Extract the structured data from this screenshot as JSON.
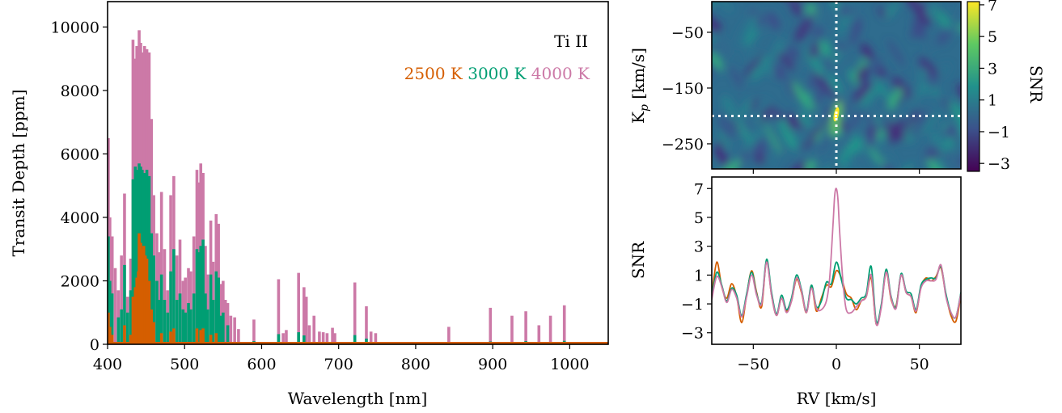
{
  "chart_data": [
    {
      "type": "bar",
      "panel": "spectrum",
      "xlabel": "Wavelength [nm]",
      "ylabel": "Transit Depth [ppm]",
      "xlim": [
        400,
        1050
      ],
      "ylim": [
        0,
        10800
      ],
      "xticks": [
        400,
        500,
        600,
        700,
        800,
        900,
        1000
      ],
      "yticks": [
        0,
        2000,
        4000,
        6000,
        8000,
        10000
      ],
      "annotation": "Ti II",
      "legend_placement": "top-right",
      "series": [
        {
          "name": "4000 K",
          "color": "#cc79a7",
          "lines": [
            [
              401,
              6500
            ],
            [
              403,
              4000
            ],
            [
              406,
              3400
            ],
            [
              410,
              2400
            ],
            [
              414,
              1700
            ],
            [
              418,
              2800
            ],
            [
              422,
              4750
            ],
            [
              426,
              1500
            ],
            [
              430,
              2700
            ],
            [
              433,
              9600
            ],
            [
              436,
              9000
            ],
            [
              438,
              9400
            ],
            [
              441,
              9900
            ],
            [
              443,
              9500
            ],
            [
              445,
              9200
            ],
            [
              448,
              9400
            ],
            [
              451,
              9300
            ],
            [
              454,
              9200
            ],
            [
              457,
              7100
            ],
            [
              460,
              4700
            ],
            [
              464,
              3500
            ],
            [
              467,
              2900
            ],
            [
              470,
              4800
            ],
            [
              474,
              3000
            ],
            [
              478,
              1700
            ],
            [
              482,
              4700
            ],
            [
              486,
              5300
            ],
            [
              490,
              2800
            ],
            [
              494,
              3300
            ],
            [
              498,
              2000
            ],
            [
              501,
              2100
            ],
            [
              505,
              2400
            ],
            [
              508,
              2300
            ],
            [
              512,
              3400
            ],
            [
              516,
              5500
            ],
            [
              519,
              5100
            ],
            [
              521,
              5700
            ],
            [
              524,
              5400
            ],
            [
              527,
              3100
            ],
            [
              530,
              2200
            ],
            [
              534,
              3900
            ],
            [
              537,
              2600
            ],
            [
              541,
              4100
            ],
            [
              544,
              3800
            ],
            [
              547,
              1900
            ],
            [
              550,
              2000
            ],
            [
              553,
              1400
            ],
            [
              556,
              1300
            ],
            [
              560,
              900
            ],
            [
              565,
              850
            ],
            [
              570,
              480
            ],
            [
              590,
              780
            ],
            [
              622,
              2050
            ],
            [
              628,
              350
            ],
            [
              632,
              450
            ],
            [
              648,
              2250
            ],
            [
              655,
              1800
            ],
            [
              658,
              1500
            ],
            [
              662,
              600
            ],
            [
              668,
              900
            ],
            [
              675,
              400
            ],
            [
              680,
              380
            ],
            [
              685,
              350
            ],
            [
              692,
              520
            ],
            [
              695,
              350
            ],
            [
              721,
              1950
            ],
            [
              736,
              1200
            ],
            [
              742,
              400
            ],
            [
              748,
              350
            ],
            [
              843,
              550
            ],
            [
              897,
              1150
            ],
            [
              925,
              900
            ],
            [
              943,
              1040
            ],
            [
              960,
              600
            ],
            [
              975,
              900
            ],
            [
              993,
              1230
            ]
          ]
        },
        {
          "name": "3000 K",
          "color": "#009e73",
          "lines": [
            [
              401,
              3400
            ],
            [
              403,
              2000
            ],
            [
              406,
              1600
            ],
            [
              414,
              850
            ],
            [
              418,
              1100
            ],
            [
              422,
              2500
            ],
            [
              426,
              1000
            ],
            [
              430,
              1700
            ],
            [
              433,
              5200
            ],
            [
              436,
              5600
            ],
            [
              438,
              5500
            ],
            [
              441,
              5700
            ],
            [
              443,
              5600
            ],
            [
              445,
              5500
            ],
            [
              448,
              5400
            ],
            [
              451,
              5500
            ],
            [
              454,
              5300
            ],
            [
              457,
              3500
            ],
            [
              460,
              2800
            ],
            [
              464,
              2000
            ],
            [
              467,
              1400
            ],
            [
              470,
              2200
            ],
            [
              474,
              1400
            ],
            [
              478,
              1000
            ],
            [
              482,
              2300
            ],
            [
              486,
              3000
            ],
            [
              490,
              1400
            ],
            [
              494,
              1600
            ],
            [
              498,
              1100
            ],
            [
              501,
              1000
            ],
            [
              505,
              1300
            ],
            [
              508,
              1100
            ],
            [
              512,
              1600
            ],
            [
              516,
              3000
            ],
            [
              519,
              2900
            ],
            [
              521,
              3100
            ],
            [
              524,
              3300
            ],
            [
              527,
              1600
            ],
            [
              530,
              1100
            ],
            [
              534,
              2200
            ],
            [
              537,
              1400
            ],
            [
              541,
              2300
            ],
            [
              544,
              2100
            ],
            [
              547,
              900
            ],
            [
              550,
              1000
            ],
            [
              556,
              600
            ],
            [
              590,
              100
            ],
            [
              622,
              320
            ],
            [
              648,
              380
            ],
            [
              655,
              280
            ],
            [
              721,
              290
            ],
            [
              736,
              180
            ],
            [
              897,
              90
            ],
            [
              943,
              100
            ],
            [
              993,
              110
            ]
          ]
        },
        {
          "name": "2500 K",
          "color": "#d55e00",
          "lines": [
            [
              401,
              1000
            ],
            [
              403,
              550
            ],
            [
              406,
              300
            ],
            [
              422,
              600
            ],
            [
              430,
              300
            ],
            [
              433,
              1500
            ],
            [
              436,
              1800
            ],
            [
              438,
              2100
            ],
            [
              440,
              2300
            ],
            [
              441,
              3500
            ],
            [
              443,
              3200
            ],
            [
              445,
              3000
            ],
            [
              447,
              3100
            ],
            [
              449,
              2800
            ],
            [
              451,
              2700
            ],
            [
              454,
              2000
            ],
            [
              457,
              1100
            ],
            [
              460,
              700
            ],
            [
              470,
              350
            ],
            [
              482,
              400
            ],
            [
              486,
              500
            ],
            [
              516,
              500
            ],
            [
              521,
              450
            ],
            [
              524,
              500
            ],
            [
              534,
              300
            ],
            [
              541,
              350
            ],
            [
              648,
              60
            ],
            [
              721,
              50
            ]
          ]
        }
      ]
    },
    {
      "type": "heatmap",
      "panel": "kp-rv-map",
      "ylabel": "Kp [km/s]",
      "ylabel_main": "K",
      "ylabel_sub": "p",
      "ylabel_rest": " [km/s]",
      "xlim": [
        -75,
        75
      ],
      "ylim": [
        -295,
        5
      ],
      "yticks": [
        -50,
        -150,
        -250
      ],
      "xtick_positions": [
        -50,
        0,
        50
      ],
      "crosshair": {
        "rv": 0,
        "kp": -200
      },
      "peak": {
        "rv": 0,
        "kp": -200,
        "snr": 7
      },
      "colorscale": "viridis",
      "colorbar": {
        "label": "SNR",
        "range": [
          -3.5,
          7.2
        ],
        "ticks": [
          7,
          5,
          3,
          1,
          -1,
          -3
        ]
      }
    },
    {
      "type": "line",
      "panel": "snr-vs-rv",
      "xlabel": "RV [km/s]",
      "ylabel": "SNR",
      "xlim": [
        -75,
        75
      ],
      "ylim": [
        -3.8,
        7.8
      ],
      "xticks": [
        -50,
        0,
        50
      ],
      "yticks": [
        7,
        5,
        3,
        1,
        -1,
        -3
      ],
      "series": [
        {
          "name": "2500 K",
          "color": "#d55e00",
          "peak": 1.3,
          "x": [
            -75,
            -72,
            -69,
            -66,
            -63,
            -60,
            -57,
            -54,
            -51,
            -48,
            -45,
            -42,
            -39,
            -36,
            -33,
            -30,
            -27,
            -24,
            -21,
            -18,
            -15,
            -12,
            -9,
            -6,
            -3,
            0,
            3,
            6,
            9,
            12,
            15,
            18,
            21,
            24,
            27,
            30,
            33,
            36,
            39,
            42,
            45,
            48,
            51,
            54,
            57,
            60,
            63,
            66,
            69,
            72,
            75
          ],
          "y": [
            -0.5,
            1.9,
            0.2,
            -0.6,
            0.4,
            -0.5,
            -2.3,
            -0.4,
            1.3,
            -0.2,
            -1.2,
            2.0,
            -0.4,
            -1.8,
            -0.6,
            -1.5,
            -0.8,
            0.7,
            -0.2,
            -1.6,
            0.2,
            -1.5,
            -0.6,
            0.3,
            0.2,
            1.3,
            0.8,
            -0.3,
            -0.6,
            -1.4,
            -0.8,
            -0.5,
            0.8,
            -2.4,
            -1.2,
            1.2,
            -0.7,
            -1.1,
            1.0,
            -0.2,
            -0.5,
            -1.6,
            0.2,
            0.8,
            0.6,
            0.9,
            1.5,
            -0.4,
            -1.8,
            -2.2,
            -0.4
          ]
        },
        {
          "name": "3000 K",
          "color": "#009e73",
          "peak": 1.9,
          "x": [
            -75,
            -72,
            -69,
            -66,
            -63,
            -60,
            -57,
            -54,
            -51,
            -48,
            -45,
            -42,
            -39,
            -36,
            -33,
            -30,
            -27,
            -24,
            -21,
            -18,
            -15,
            -12,
            -9,
            -6,
            -3,
            0,
            3,
            6,
            9,
            12,
            15,
            18,
            21,
            24,
            27,
            30,
            33,
            36,
            39,
            42,
            45,
            48,
            51,
            54,
            57,
            60,
            63,
            66,
            69,
            72,
            75
          ],
          "y": [
            -0.5,
            1.2,
            0.3,
            -0.8,
            0.1,
            -0.4,
            -1.8,
            -0.3,
            1.2,
            -0.3,
            -0.9,
            2.1,
            -0.2,
            -1.7,
            -0.4,
            -1.4,
            -0.6,
            1.0,
            0.0,
            -1.5,
            0.3,
            -1.2,
            -0.8,
            0.5,
            0.4,
            1.9,
            0.7,
            -0.6,
            -0.7,
            -1.0,
            -0.6,
            -0.3,
            1.6,
            -2.2,
            -1.1,
            1.4,
            -0.5,
            -1.2,
            1.1,
            -0.1,
            -0.3,
            -1.4,
            0.3,
            0.7,
            0.8,
            0.8,
            1.6,
            -0.3,
            -1.6,
            -1.9,
            -0.2
          ]
        },
        {
          "name": "4000 K",
          "color": "#cc79a7",
          "peak": 7.0,
          "x": [
            -75,
            -72,
            -69,
            -66,
            -63,
            -60,
            -57,
            -54,
            -51,
            -48,
            -45,
            -42,
            -39,
            -36,
            -33,
            -30,
            -27,
            -24,
            -21,
            -18,
            -15,
            -12,
            -9,
            -6,
            -4,
            -2,
            -1,
            0,
            1,
            2,
            4,
            6,
            9,
            12,
            15,
            18,
            21,
            24,
            27,
            30,
            33,
            36,
            39,
            42,
            45,
            48,
            51,
            54,
            57,
            60,
            63,
            66,
            69,
            72,
            75
          ],
          "y": [
            -0.7,
            0.9,
            0.2,
            -0.9,
            0.0,
            -0.6,
            -1.9,
            -0.5,
            1.0,
            -0.4,
            -1.0,
            1.9,
            -0.4,
            -1.8,
            -0.6,
            -1.6,
            -0.8,
            0.8,
            -0.1,
            -1.6,
            0.1,
            -1.3,
            -1.4,
            -0.8,
            0.8,
            4.5,
            6.5,
            7.0,
            6.2,
            4.0,
            0.5,
            -1.4,
            -1.6,
            -1.2,
            -0.8,
            -0.5,
            1.0,
            -2.4,
            -1.3,
            1.2,
            -0.6,
            -1.3,
            1.0,
            -0.2,
            -0.5,
            -1.5,
            0.1,
            0.6,
            0.6,
            0.7,
            1.7,
            -0.5,
            -1.6,
            -1.9,
            -0.3
          ]
        }
      ]
    }
  ]
}
